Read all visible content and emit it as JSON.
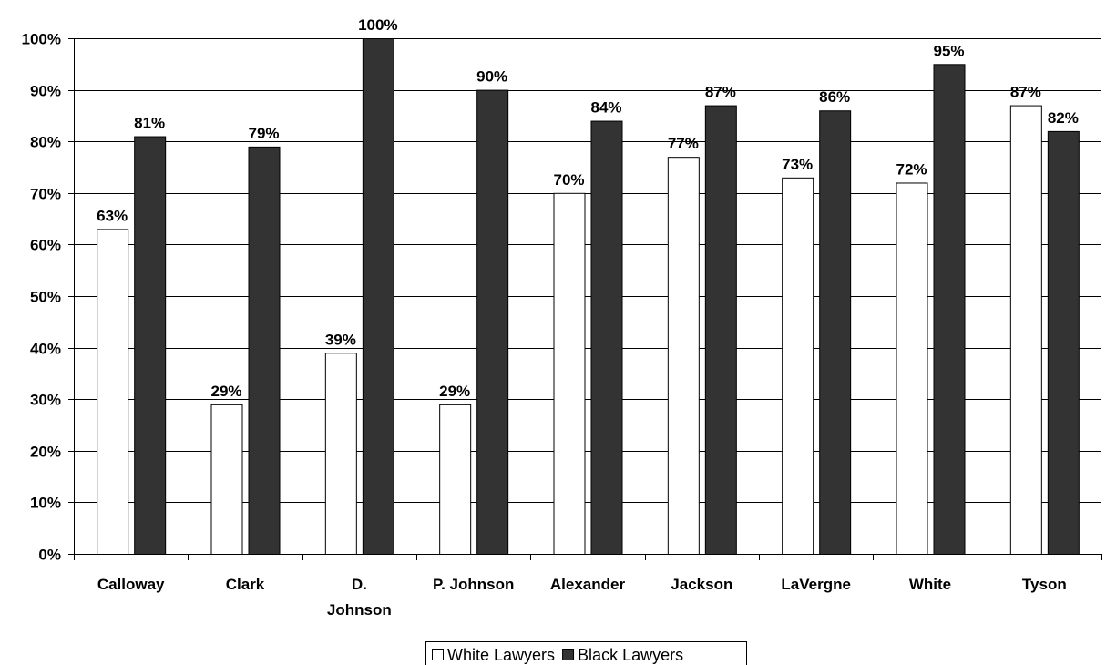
{
  "chart_data": {
    "type": "bar",
    "categories": [
      [
        "Calloway"
      ],
      [
        "Clark"
      ],
      [
        "D.",
        "Johnson"
      ],
      [
        "P. Johnson"
      ],
      [
        "Alexander"
      ],
      [
        "Jackson"
      ],
      [
        "LaVergne"
      ],
      [
        "White"
      ],
      [
        "Tyson"
      ]
    ],
    "series": [
      {
        "name": "White Lawyers",
        "color": "#ffffff",
        "values": [
          63,
          29,
          39,
          29,
          70,
          77,
          73,
          72,
          87
        ],
        "labels": [
          "63%",
          "29%",
          "39%",
          "29%",
          "70%",
          "77%",
          "73%",
          "72%",
          "87%"
        ]
      },
      {
        "name": "Black Lawyers",
        "color": "#333333",
        "values": [
          81,
          79,
          100,
          90,
          84,
          87,
          86,
          95,
          82
        ],
        "labels": [
          "81%",
          "79%",
          "100%",
          "90%",
          "84%",
          "87%",
          "86%",
          "95%",
          "82%"
        ]
      }
    ],
    "ylim": [
      0,
      100
    ],
    "yticks": [
      0,
      10,
      20,
      30,
      40,
      50,
      60,
      70,
      80,
      90,
      100
    ],
    "ytick_labels": [
      "0%",
      "10%",
      "20%",
      "30%",
      "40%",
      "50%",
      "60%",
      "70%",
      "80%",
      "90%",
      "100%"
    ],
    "grid": true,
    "legend_position": "bottom",
    "title": "",
    "xlabel": "",
    "ylabel": ""
  }
}
